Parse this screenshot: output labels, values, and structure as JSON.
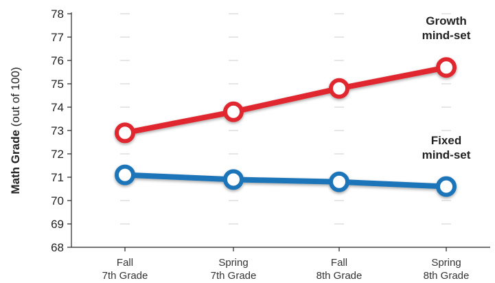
{
  "chart_data": {
    "type": "line",
    "ylabel_bold": "Math Grade",
    "ylabel_rest": " (out of 100)",
    "ylim": [
      68,
      78
    ],
    "yticks": [
      68,
      69,
      70,
      71,
      72,
      73,
      74,
      75,
      76,
      77,
      78
    ],
    "grid": "dashed markers",
    "categories": [
      [
        "Fall",
        "7th Grade"
      ],
      [
        "Spring",
        "7th Grade"
      ],
      [
        "Fall",
        "8th Grade"
      ],
      [
        "Spring",
        "8th Grade"
      ]
    ],
    "series": [
      {
        "name": "Growth mind-set",
        "label_lines": [
          "Growth",
          "mind-set"
        ],
        "color": "#e0262d",
        "values": [
          72.9,
          73.8,
          74.8,
          75.7
        ]
      },
      {
        "name": "Fixed mind-set",
        "label_lines": [
          "Fixed",
          "mind-set"
        ],
        "color": "#1f75b8",
        "values": [
          71.1,
          70.9,
          70.8,
          70.6
        ]
      }
    ]
  }
}
